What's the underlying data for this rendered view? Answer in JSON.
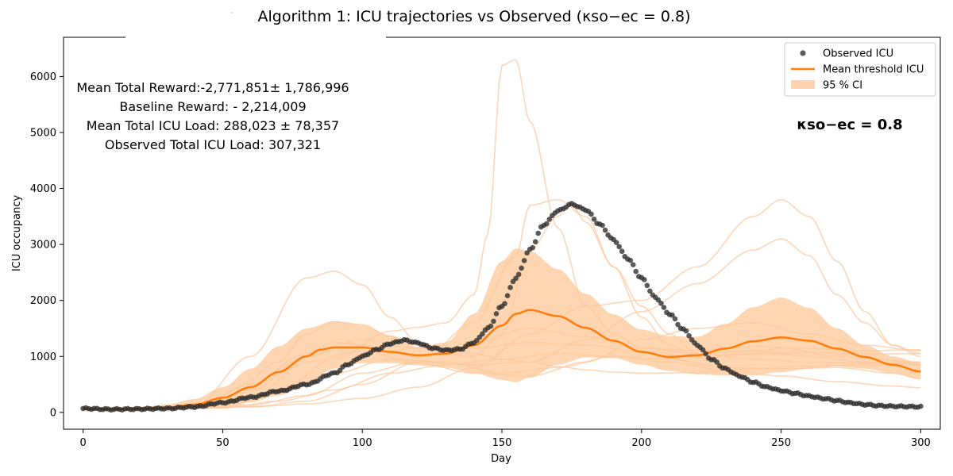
{
  "chart_data": {
    "type": "line",
    "title": "Algorithm 1: ICU trajectories vs Observed (κso−ec = 0.8)",
    "xlabel": "Day",
    "ylabel": "ICU occupancy",
    "xlim": [
      -7,
      307
    ],
    "ylim": [
      -300,
      6700
    ],
    "xticks": [
      0,
      50,
      100,
      150,
      200,
      250,
      300
    ],
    "yticks": [
      0,
      1000,
      2000,
      3000,
      4000,
      5000,
      6000
    ],
    "grid": false,
    "legend": {
      "position": "top-right",
      "entries": [
        "Observed ICU",
        "Mean threshold ICU",
        "95 % CI"
      ]
    },
    "annotations": [
      "Mean Total Reward:-2,771,851± 1,786,996",
      "Baseline Reward: - 2,214,009",
      "Mean Total ICU Load: 288,023 ± 78,357",
      "Observed Total ICU Load: 307,321"
    ],
    "kappa_label": "κso−ec = 0.8",
    "colors": {
      "observed": "#2b2b2b",
      "mean": "#ff7f0e",
      "ci": "#fdc99b",
      "trajectory": "#fdc8a2"
    },
    "observed_days": [
      0,
      300
    ],
    "observed_anchors": [
      [
        0,
        70
      ],
      [
        10,
        55
      ],
      [
        20,
        60
      ],
      [
        30,
        70
      ],
      [
        40,
        100
      ],
      [
        50,
        175
      ],
      [
        60,
        270
      ],
      [
        70,
        380
      ],
      [
        80,
        500
      ],
      [
        90,
        700
      ],
      [
        95,
        860
      ],
      [
        100,
        1000
      ],
      [
        105,
        1120
      ],
      [
        110,
        1230
      ],
      [
        115,
        1290
      ],
      [
        120,
        1240
      ],
      [
        125,
        1150
      ],
      [
        130,
        1110
      ],
      [
        135,
        1130
      ],
      [
        140,
        1250
      ],
      [
        145,
        1500
      ],
      [
        150,
        1900
      ],
      [
        155,
        2400
      ],
      [
        160,
        2900
      ],
      [
        165,
        3350
      ],
      [
        170,
        3600
      ],
      [
        175,
        3720
      ],
      [
        180,
        3620
      ],
      [
        185,
        3360
      ],
      [
        190,
        3080
      ],
      [
        195,
        2750
      ],
      [
        200,
        2400
      ],
      [
        205,
        2050
      ],
      [
        210,
        1760
      ],
      [
        215,
        1480
      ],
      [
        220,
        1200
      ],
      [
        225,
        950
      ],
      [
        230,
        780
      ],
      [
        235,
        650
      ],
      [
        240,
        540
      ],
      [
        245,
        450
      ],
      [
        250,
        390
      ],
      [
        255,
        340
      ],
      [
        260,
        290
      ],
      [
        265,
        250
      ],
      [
        270,
        210
      ],
      [
        275,
        170
      ],
      [
        280,
        140
      ],
      [
        285,
        120
      ],
      [
        290,
        110
      ],
      [
        295,
        105
      ],
      [
        300,
        100
      ]
    ],
    "mean_threshold_icu": [
      [
        0,
        55
      ],
      [
        20,
        60
      ],
      [
        30,
        80
      ],
      [
        40,
        140
      ],
      [
        50,
        260
      ],
      [
        60,
        450
      ],
      [
        70,
        720
      ],
      [
        80,
        1000
      ],
      [
        85,
        1120
      ],
      [
        90,
        1160
      ],
      [
        100,
        1160
      ],
      [
        110,
        1080
      ],
      [
        120,
        1020
      ],
      [
        130,
        1050
      ],
      [
        140,
        1200
      ],
      [
        150,
        1550
      ],
      [
        155,
        1760
      ],
      [
        160,
        1830
      ],
      [
        170,
        1720
      ],
      [
        180,
        1510
      ],
      [
        190,
        1280
      ],
      [
        200,
        1080
      ],
      [
        210,
        990
      ],
      [
        220,
        1020
      ],
      [
        230,
        1140
      ],
      [
        240,
        1270
      ],
      [
        250,
        1340
      ],
      [
        260,
        1280
      ],
      [
        270,
        1140
      ],
      [
        280,
        990
      ],
      [
        290,
        850
      ],
      [
        300,
        730
      ]
    ],
    "ci_upper": [
      [
        0,
        80
      ],
      [
        20,
        85
      ],
      [
        30,
        140
      ],
      [
        40,
        240
      ],
      [
        50,
        450
      ],
      [
        60,
        780
      ],
      [
        70,
        1180
      ],
      [
        80,
        1500
      ],
      [
        90,
        1630
      ],
      [
        100,
        1560
      ],
      [
        110,
        1380
      ],
      [
        120,
        1170
      ],
      [
        130,
        1250
      ],
      [
        140,
        1760
      ],
      [
        150,
        2700
      ],
      [
        155,
        2930
      ],
      [
        160,
        2880
      ],
      [
        170,
        2560
      ],
      [
        180,
        2120
      ],
      [
        190,
        1750
      ],
      [
        200,
        1480
      ],
      [
        210,
        1360
      ],
      [
        220,
        1350
      ],
      [
        230,
        1580
      ],
      [
        240,
        1880
      ],
      [
        250,
        2050
      ],
      [
        260,
        1870
      ],
      [
        270,
        1500
      ],
      [
        280,
        1200
      ],
      [
        290,
        1000
      ],
      [
        300,
        880
      ]
    ],
    "ci_lower": [
      [
        0,
        40
      ],
      [
        20,
        45
      ],
      [
        30,
        45
      ],
      [
        40,
        60
      ],
      [
        50,
        100
      ],
      [
        60,
        180
      ],
      [
        70,
        300
      ],
      [
        80,
        520
      ],
      [
        90,
        780
      ],
      [
        100,
        880
      ],
      [
        110,
        880
      ],
      [
        120,
        840
      ],
      [
        130,
        800
      ],
      [
        140,
        700
      ],
      [
        150,
        580
      ],
      [
        155,
        540
      ],
      [
        160,
        620
      ],
      [
        170,
        850
      ],
      [
        180,
        980
      ],
      [
        190,
        970
      ],
      [
        200,
        850
      ],
      [
        210,
        740
      ],
      [
        220,
        680
      ],
      [
        230,
        660
      ],
      [
        240,
        660
      ],
      [
        250,
        720
      ],
      [
        260,
        780
      ],
      [
        270,
        820
      ],
      [
        280,
        780
      ],
      [
        290,
        700
      ],
      [
        300,
        600
      ]
    ],
    "trajectories": [
      [
        [
          0,
          60
        ],
        [
          40,
          120
        ],
        [
          60,
          1000
        ],
        [
          80,
          2400
        ],
        [
          90,
          2520
        ],
        [
          100,
          2280
        ],
        [
          110,
          1700
        ],
        [
          120,
          1250
        ],
        [
          130,
          1130
        ],
        [
          140,
          1050
        ],
        [
          150,
          950
        ],
        [
          160,
          900
        ],
        [
          170,
          820
        ],
        [
          180,
          760
        ],
        [
          190,
          720
        ],
        [
          200,
          700
        ],
        [
          220,
          710
        ],
        [
          240,
          780
        ],
        [
          260,
          830
        ],
        [
          280,
          840
        ],
        [
          300,
          900
        ]
      ],
      [
        [
          0,
          60
        ],
        [
          50,
          120
        ],
        [
          70,
          900
        ],
        [
          80,
          1400
        ],
        [
          90,
          1620
        ],
        [
          100,
          1570
        ],
        [
          110,
          1350
        ],
        [
          120,
          1200
        ],
        [
          130,
          1150
        ],
        [
          140,
          1150
        ],
        [
          160,
          1250
        ],
        [
          180,
          1200
        ],
        [
          200,
          1080
        ],
        [
          220,
          980
        ],
        [
          240,
          1040
        ],
        [
          260,
          1070
        ],
        [
          280,
          1040
        ],
        [
          300,
          1050
        ]
      ],
      [
        [
          0,
          60
        ],
        [
          50,
          80
        ],
        [
          70,
          400
        ],
        [
          90,
          950
        ],
        [
          110,
          1450
        ],
        [
          120,
          1520
        ],
        [
          130,
          1600
        ],
        [
          140,
          2100
        ],
        [
          145,
          3200
        ],
        [
          150,
          6200
        ],
        [
          155,
          6300
        ],
        [
          160,
          5200
        ],
        [
          170,
          3300
        ],
        [
          180,
          1900
        ],
        [
          190,
          1400
        ],
        [
          200,
          1150
        ],
        [
          220,
          1100
        ],
        [
          240,
          1180
        ],
        [
          260,
          1140
        ],
        [
          280,
          1100
        ],
        [
          300,
          1120
        ]
      ],
      [
        [
          0,
          60
        ],
        [
          60,
          100
        ],
        [
          80,
          200
        ],
        [
          100,
          500
        ],
        [
          120,
          900
        ],
        [
          140,
          1600
        ],
        [
          155,
          2800
        ],
        [
          160,
          3700
        ],
        [
          170,
          3800
        ],
        [
          180,
          3500
        ],
        [
          190,
          2600
        ],
        [
          200,
          1700
        ],
        [
          210,
          1200
        ],
        [
          220,
          1000
        ],
        [
          240,
          1050
        ],
        [
          250,
          1150
        ],
        [
          270,
          1000
        ],
        [
          300,
          900
        ]
      ],
      [
        [
          0,
          60
        ],
        [
          60,
          100
        ],
        [
          80,
          150
        ],
        [
          100,
          250
        ],
        [
          120,
          450
        ],
        [
          140,
          800
        ],
        [
          160,
          1400
        ],
        [
          180,
          1900
        ],
        [
          200,
          2000
        ],
        [
          220,
          2600
        ],
        [
          240,
          3500
        ],
        [
          250,
          3800
        ],
        [
          260,
          3500
        ],
        [
          270,
          2700
        ],
        [
          280,
          1800
        ],
        [
          290,
          1200
        ],
        [
          300,
          1000
        ]
      ],
      [
        [
          0,
          60
        ],
        [
          40,
          100
        ],
        [
          60,
          400
        ],
        [
          80,
          1000
        ],
        [
          100,
          1300
        ],
        [
          120,
          1150
        ],
        [
          140,
          1000
        ],
        [
          150,
          1400
        ],
        [
          160,
          2900
        ],
        [
          170,
          3500
        ],
        [
          175,
          3700
        ],
        [
          180,
          3400
        ],
        [
          190,
          2600
        ],
        [
          200,
          1900
        ],
        [
          210,
          1400
        ],
        [
          220,
          1050
        ],
        [
          240,
          950
        ],
        [
          260,
          900
        ],
        [
          280,
          880
        ],
        [
          300,
          870
        ]
      ],
      [
        [
          0,
          60
        ],
        [
          60,
          130
        ],
        [
          80,
          300
        ],
        [
          100,
          700
        ],
        [
          120,
          900
        ],
        [
          140,
          850
        ],
        [
          160,
          900
        ],
        [
          180,
          1300
        ],
        [
          200,
          1800
        ],
        [
          220,
          2300
        ],
        [
          240,
          2900
        ],
        [
          250,
          3100
        ],
        [
          260,
          2800
        ],
        [
          270,
          2100
        ],
        [
          280,
          1600
        ],
        [
          290,
          1200
        ],
        [
          300,
          1050
        ]
      ],
      [
        [
          0,
          60
        ],
        [
          40,
          80
        ],
        [
          60,
          250
        ],
        [
          80,
          900
        ],
        [
          100,
          1100
        ],
        [
          120,
          880
        ],
        [
          140,
          700
        ],
        [
          160,
          650
        ],
        [
          180,
          900
        ],
        [
          200,
          1300
        ],
        [
          220,
          1500
        ],
        [
          240,
          1600
        ],
        [
          260,
          1400
        ],
        [
          280,
          1200
        ],
        [
          300,
          1100
        ]
      ],
      [
        [
          0,
          60
        ],
        [
          50,
          90
        ],
        [
          70,
          350
        ],
        [
          90,
          700
        ],
        [
          110,
          950
        ],
        [
          130,
          900
        ],
        [
          150,
          700
        ],
        [
          170,
          800
        ],
        [
          190,
          1000
        ],
        [
          210,
          950
        ],
        [
          230,
          800
        ],
        [
          250,
          780
        ],
        [
          270,
          800
        ],
        [
          290,
          700
        ],
        [
          300,
          600
        ]
      ],
      [
        [
          0,
          60
        ],
        [
          50,
          80
        ],
        [
          70,
          200
        ],
        [
          90,
          400
        ],
        [
          110,
          700
        ],
        [
          130,
          850
        ],
        [
          150,
          950
        ],
        [
          170,
          1050
        ],
        [
          190,
          1000
        ],
        [
          210,
          900
        ],
        [
          230,
          750
        ],
        [
          250,
          650
        ],
        [
          270,
          550
        ],
        [
          290,
          470
        ],
        [
          300,
          440
        ]
      ],
      [
        [
          0,
          60
        ],
        [
          40,
          90
        ],
        [
          60,
          500
        ],
        [
          80,
          1050
        ],
        [
          90,
          1250
        ],
        [
          100,
          1200
        ],
        [
          110,
          1080
        ],
        [
          120,
          980
        ],
        [
          140,
          1250
        ],
        [
          160,
          1500
        ],
        [
          180,
          1350
        ],
        [
          200,
          1150
        ],
        [
          220,
          1050
        ],
        [
          240,
          1100
        ],
        [
          260,
          1000
        ],
        [
          280,
          900
        ],
        [
          300,
          850
        ]
      ]
    ]
  }
}
